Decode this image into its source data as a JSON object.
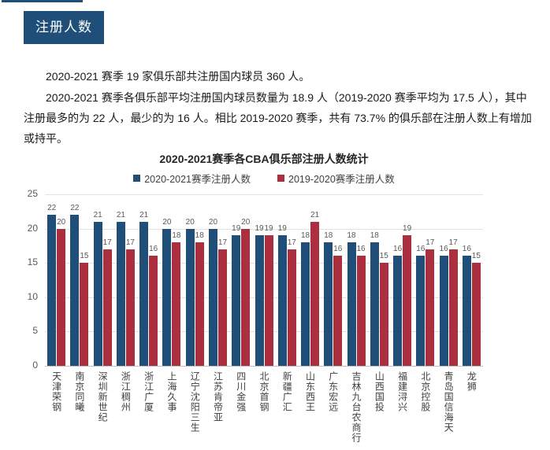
{
  "page": {
    "section_badge": "注册人数",
    "paragraphs": [
      "2020-2021 赛季 19 家俱乐部共注册国内球员 360 人。",
      "2020-2021 赛季各俱乐部平均注册国内球员数量为 18.9 人（2019-2020 赛季平均为 17.5 人），其中注册最多的为 22 人，最少的为 16 人。相比 2019-2020 赛季，共有 73.7% 的俱乐部在注册人数上有增加或持平。"
    ]
  },
  "colors": {
    "navy": "#1f4e79",
    "crimson": "#ac2f40",
    "grid": "#e2e2e2",
    "axis": "#c0c0c0",
    "muted": "#595959",
    "label": "#404040"
  },
  "chart_data": {
    "type": "bar",
    "title": "2020-2021赛季各CBA俱乐部注册人数统计",
    "categories": [
      "天津荣钢",
      "南京同曦",
      "深圳新世纪",
      "浙江稠州",
      "浙江广厦",
      "上海久事",
      "辽宁沈阳三生",
      "江苏肯帝亚",
      "四川金强",
      "北京首钢",
      "新疆广汇",
      "山东西王",
      "广东宏远",
      "吉林九台农商行",
      "山西国投",
      "福建浔兴",
      "北京控股",
      "青岛国信海天",
      "龙狮"
    ],
    "series": [
      {
        "name": "2020-2021赛季注册人数",
        "color": "#1f4e79",
        "values": [
          22,
          22,
          21,
          21,
          21,
          20,
          20,
          20,
          19,
          19,
          19,
          18,
          18,
          18,
          18,
          16,
          16,
          16,
          16
        ]
      },
      {
        "name": "2019-2020赛季注册人数",
        "color": "#ac2f40",
        "values": [
          20,
          15,
          17,
          17,
          16,
          18,
          18,
          17,
          20,
          19,
          17,
          21,
          16,
          16,
          15,
          19,
          17,
          17,
          15
        ]
      }
    ],
    "xlabel": "",
    "ylabel": "",
    "ylim": [
      0,
      25
    ],
    "yticks": [
      0,
      5,
      10,
      15,
      20,
      25
    ],
    "grid": true,
    "legend_position": "top",
    "data_labels": true
  }
}
